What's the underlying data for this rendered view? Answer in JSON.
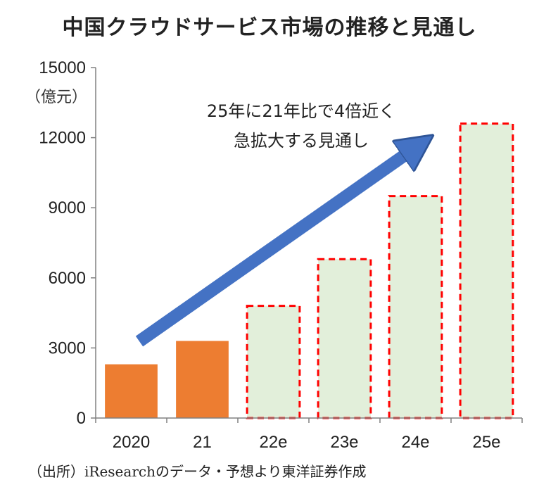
{
  "title": "中国クラウドサービス市場の推移と見通し",
  "unit_label": "（億元）",
  "source": "（出所）iResearchのデータ・予想より東洋証券作成",
  "annotation": {
    "line1": "25年に21年比で4倍近く",
    "line2": "急拡大する見通し"
  },
  "colors": {
    "actual_fill": "#ED7D31",
    "forecast_fill": "#E2EFDA",
    "forecast_border": "#FF0000",
    "arrow": "#4472C4",
    "axis": "#808080"
  },
  "chart_data": {
    "type": "bar",
    "title": "中国クラウドサービス市場の推移と見通し",
    "ylabel": "（億元）",
    "xlabel": "",
    "categories": [
      "2020",
      "21",
      "22e",
      "23e",
      "24e",
      "25e"
    ],
    "values": [
      2300,
      3300,
      4800,
      6800,
      9500,
      12600
    ],
    "forecast": [
      false,
      false,
      true,
      true,
      true,
      true
    ],
    "ylim": [
      0,
      15000
    ],
    "yticks": [
      "0",
      "3000",
      "6000",
      "9000",
      "12000",
      "15000"
    ],
    "grid": false,
    "legend": "none"
  }
}
